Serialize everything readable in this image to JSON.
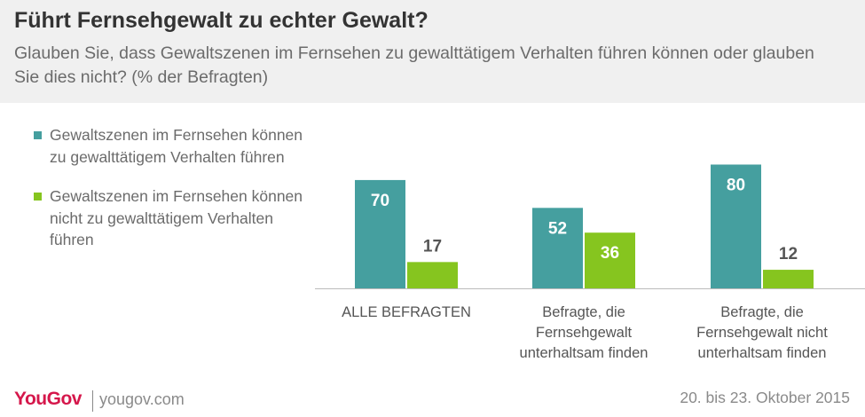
{
  "title": "Führt Fernsehgewalt zu echter Gewalt?",
  "subtitle": "Glauben Sie, dass Gewaltszenen im Fernsehen zu gewalttätigem Verhalten führen können oder glauben Sie dies nicht? (% der Befragten)",
  "footer": {
    "brand": "YouGov",
    "site": "yougov.com",
    "date": "20. bis 23. Oktober 2015"
  },
  "chart_data": {
    "type": "bar",
    "categories": [
      [
        "ALLE BEFRAGTEN"
      ],
      [
        "Befragte, die",
        "Fernsehgewalt",
        "unterhaltsam finden"
      ],
      [
        "Befragte, die",
        "Fernsehgewalt nicht",
        "unterhaltsam finden"
      ]
    ],
    "series": [
      {
        "name": "Gewaltszenen im Fernsehen können zu gewalttätigem Verhalten führen",
        "color": "#459f9f",
        "values": [
          70,
          52,
          80
        ]
      },
      {
        "name": "Gewaltszenen im Fernsehen können nicht zu gewalttätigem Verhalten führen",
        "color": "#86c51f",
        "values": [
          17,
          36,
          12
        ]
      }
    ],
    "ylim": [
      0,
      100
    ],
    "legend_position": "left",
    "grid": false
  }
}
